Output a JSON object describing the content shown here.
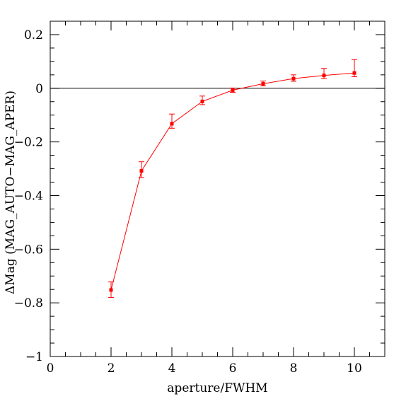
{
  "chart_data": {
    "type": "line",
    "title": "",
    "xlabel": "aperture/FWHM",
    "ylabel": "ΔMag (MAG_AUTO−MAG_APER)",
    "xlim": [
      0,
      11
    ],
    "ylim": [
      -1,
      0.25
    ],
    "x_ticks": [
      0,
      2,
      4,
      6,
      8,
      10
    ],
    "x_tick_labels": [
      "0",
      "2",
      "4",
      "6",
      "8",
      "10"
    ],
    "y_ticks": [
      -1,
      -0.8,
      -0.6,
      -0.4,
      -0.2,
      0,
      0.2
    ],
    "y_tick_labels": [
      "−1",
      "−0.8",
      "−0.6",
      "−0.4",
      "−0.2",
      "0",
      "0.2"
    ],
    "x_minor_step": 0.5,
    "y_minor_step": 0.05,
    "grid": false,
    "reference_line_y": 0,
    "series": [
      {
        "color": "#ff0000",
        "x": [
          2,
          3,
          4,
          5,
          6,
          7,
          8,
          9,
          10
        ],
        "y": [
          -0.752,
          -0.308,
          -0.132,
          -0.049,
          -0.007,
          0.017,
          0.036,
          0.048,
          0.057
        ],
        "err_low": [
          0.028,
          0.025,
          0.017,
          0.012,
          0.008,
          0.008,
          0.01,
          0.012,
          0.014
        ],
        "err_high": [
          0.03,
          0.034,
          0.036,
          0.02,
          0.008,
          0.01,
          0.014,
          0.026,
          0.05
        ]
      }
    ],
    "colors": {
      "series": "#ff0000",
      "axes": "#000000",
      "reference_line": "#000000"
    }
  }
}
